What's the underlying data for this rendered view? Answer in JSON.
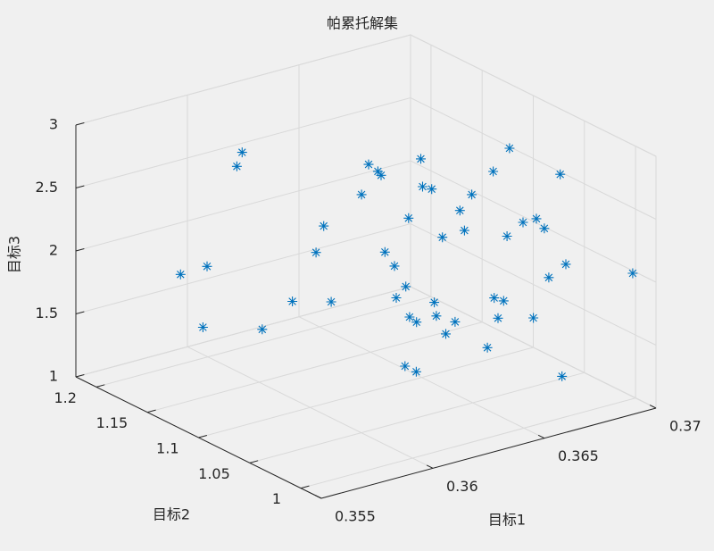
{
  "chart_data": {
    "type": "scatter3d",
    "title": "帕累托解集",
    "xlabel": "目标1",
    "ylabel": "目标2",
    "zlabel": "目标3",
    "color": "#0072bd",
    "marker": "*",
    "grid": true,
    "xlim": [
      0.355,
      0.37
    ],
    "ylim": [
      0.98,
      1.22
    ],
    "zlim": [
      1,
      3
    ],
    "xticks": [
      0.355,
      0.36,
      0.365,
      0.37
    ],
    "yticks": [
      1,
      1.05,
      1.1,
      1.15,
      1.2
    ],
    "zticks": [
      1,
      1.5,
      2,
      2.5,
      3
    ],
    "x": [
      0.3597,
      0.3602,
      0.3574,
      0.3579,
      0.3579,
      0.3595,
      0.3598,
      0.3609,
      0.3604,
      0.3607,
      0.3629,
      0.3634,
      0.364,
      0.3646,
      0.3645,
      0.3651,
      0.3644,
      0.366,
      0.3661,
      0.3663,
      0.366,
      0.3657,
      0.3639,
      0.3641,
      0.3647,
      0.3645,
      0.3645,
      0.3644,
      0.3646,
      0.3646,
      0.3653,
      0.3648,
      0.3657,
      0.3637,
      0.3637,
      0.3677,
      0.3666,
      0.3669,
      0.3669,
      0.3667,
      0.3673,
      0.3677,
      0.3677,
      0.3679,
      0.3666,
      0.3667,
      0.367,
      0.3673,
      0.3684,
      0.36955
    ],
    "y": [
      1.16,
      1.176,
      1.17,
      1.155,
      1.159,
      1.136,
      1.113,
      1.099,
      1.103,
      1.102,
      1.113,
      1.117,
      1.121,
      1.131,
      1.09,
      1.115,
      1.086,
      1.112,
      1.075,
      1.091,
      1.08,
      1.095,
      1.112,
      1.107,
      1.109,
      1.114,
      1.101,
      1.092,
      1.079,
      1.077,
      1.083,
      1.063,
      1.051,
      1.088,
      1.077,
      1.073,
      1.065,
      1.006,
      1.058,
      1.038,
      1.038,
      1.039,
      1.018,
      1.039,
      1.064,
      1.057,
      1.069,
      1.041,
      1.037,
      0.993
    ],
    "z": [
      2.8,
      2.6,
      1.9,
      2.0,
      1.5,
      1.5,
      1.8,
      1.8,
      2.2,
      2.4,
      2.5,
      2.7,
      2.6,
      2.5,
      2.8,
      2.2,
      2.6,
      2.4,
      2.5,
      2.3,
      2.2,
      2.1,
      2.0,
      1.9,
      1.7,
      1.6,
      1.5,
      1.5,
      1.7,
      1.6,
      1.4,
      1.6,
      1.4,
      1.2,
      1.2,
      2.8,
      2.7,
      2.9,
      2.2,
      2.4,
      2.4,
      2.3,
      2.1,
      1.9,
      1.7,
      1.7,
      1.5,
      1.6,
      1.1,
      2.04
    ]
  }
}
